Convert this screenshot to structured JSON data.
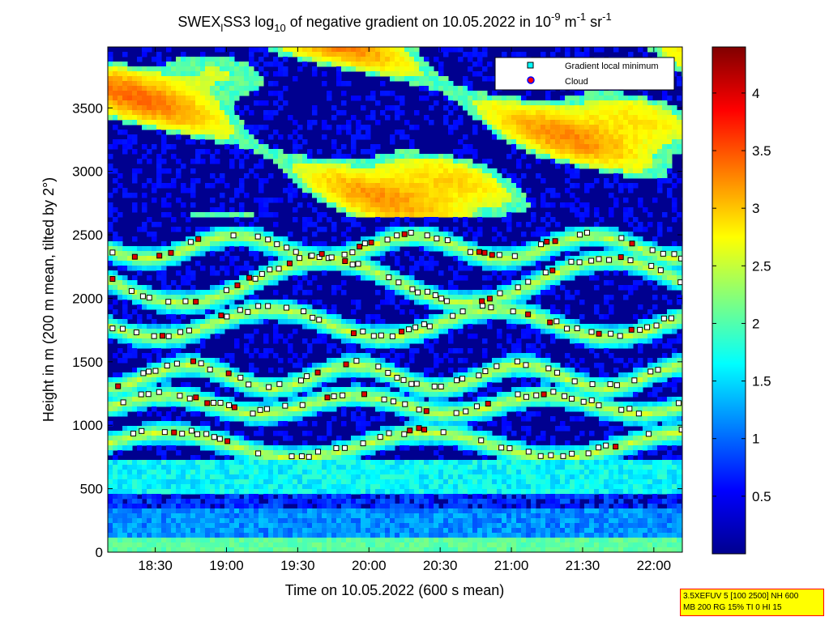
{
  "chart_data": {
    "type": "heatmap",
    "title": {
      "parts": [
        {
          "text": "SWEX",
          "style": "normal"
        },
        {
          "text": "l",
          "style": "sub"
        },
        {
          "text": "SS3 log",
          "style": "normal"
        },
        {
          "text": "10",
          "style": "sub"
        },
        {
          "text": " of negative gradient on 10.05.2022 in 10",
          "style": "normal"
        },
        {
          "text": "-9",
          "style": "sup"
        },
        {
          "text": " m",
          "style": "normal"
        },
        {
          "text": "-1",
          "style": "sup"
        },
        {
          "text": " sr",
          "style": "normal"
        },
        {
          "text": "-1",
          "style": "sup"
        }
      ]
    },
    "xlabel": "Time on 10.05.2022 (600 s mean)",
    "ylabel": "Height in m (200 m mean, tilted by 2°)",
    "x_ticks": [
      "18:30",
      "19:00",
      "19:30",
      "20:00",
      "20:30",
      "21:00",
      "21:30",
      "22:00"
    ],
    "x_tick_minutes": [
      1110,
      1140,
      1170,
      1200,
      1230,
      1260,
      1290,
      1320
    ],
    "xlim_minutes": [
      1090,
      1332
    ],
    "y_ticks": [
      0,
      500,
      1000,
      1500,
      2000,
      2500,
      3000,
      3500
    ],
    "ylim": [
      0,
      3980
    ],
    "colorbar": {
      "colormap": "jet",
      "range": [
        0,
        4.4
      ],
      "ticks": [
        "0.5",
        "1",
        "1.5",
        "2",
        "2.5",
        "3",
        "3.5",
        "4"
      ],
      "tick_values": [
        0.5,
        1,
        1.5,
        2,
        2.5,
        3,
        3.5,
        4
      ]
    },
    "legend": {
      "placement": "top-right",
      "entries": [
        {
          "label": "Gradient local minimum",
          "marker": "square",
          "color": "#00ffff"
        },
        {
          "label": "Cloud",
          "marker": "circle",
          "color": "#ff0000",
          "edge": "#0000ff"
        }
      ]
    },
    "layers": [
      {
        "base": 1820,
        "amp": 110,
        "period": 95,
        "phase": 0.4
      },
      {
        "base": 1400,
        "amp": 90,
        "period": 70,
        "phase": 1.3
      },
      {
        "base": 1180,
        "amp": 70,
        "period": 80,
        "phase": 2.1
      },
      {
        "base": 860,
        "amp": 100,
        "period": 110,
        "phase": 0.8
      },
      {
        "base": 2150,
        "amp": 170,
        "period": 120,
        "phase": 2.6
      },
      {
        "base": 2420,
        "amp": 90,
        "period": 75,
        "phase": 0.1
      }
    ]
  },
  "infobox": {
    "line1": "3.5XEFUV 5 [100 2500] NH 600",
    "line2": "MB 200 RG 15% TI 0 HI 15"
  }
}
